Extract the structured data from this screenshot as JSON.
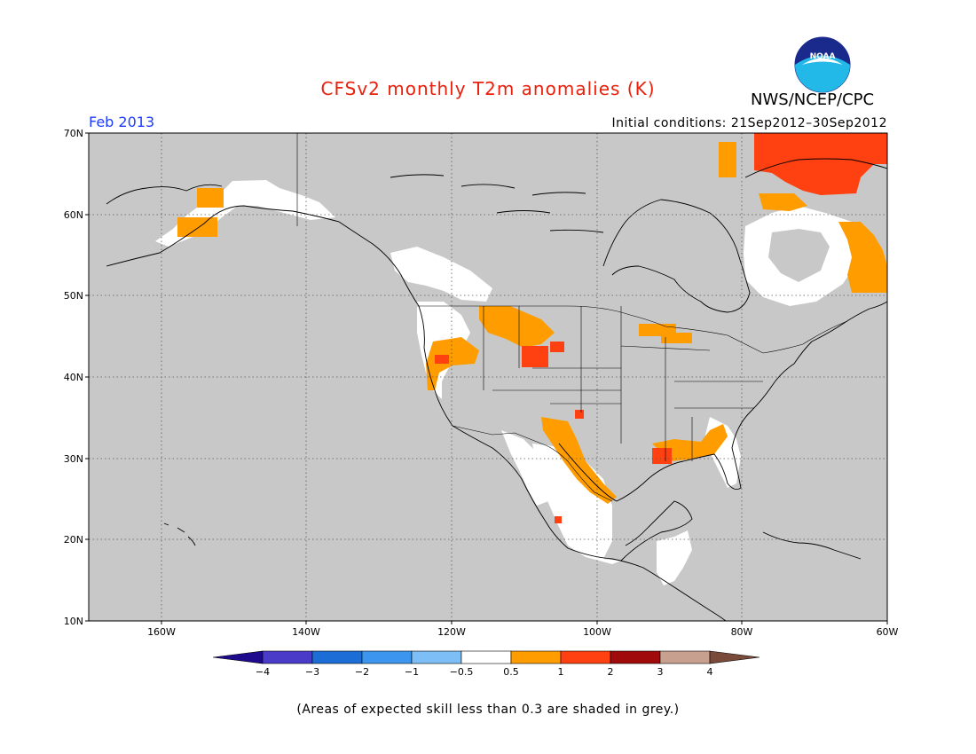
{
  "header": {
    "title": "CFSv2 monthly T2m anomalies (K)",
    "agency": "NWS/NCEP/CPC",
    "logo_text": "NOAA",
    "month": "Feb 2013",
    "initial_conditions": "Initial conditions: 21Sep2012–30Sep2012"
  },
  "axes": {
    "lon_ticks": [
      "160W",
      "140W",
      "120W",
      "100W",
      "80W",
      "60W"
    ],
    "lat_ticks": [
      "10N",
      "20N",
      "30N",
      "40N",
      "50N",
      "60N",
      "70N"
    ]
  },
  "colorbar": {
    "labels": [
      "−4",
      "−3",
      "−2",
      "−1",
      "−0.5",
      "0.5",
      "1",
      "2",
      "3",
      "4"
    ],
    "colors": [
      "#1e0a8c",
      "#4a3cc8",
      "#1c6ed6",
      "#3c96f0",
      "#7cbef5",
      "#ffffff",
      "#ff9d00",
      "#ff4010",
      "#a00a0a",
      "#c8a090",
      "#7a4a3a"
    ]
  },
  "footnote": "(Areas of expected skill less than 0.3 are shaded in grey.)",
  "map_style": {
    "grey_mask": "#c8c8c8",
    "white": "#ffffff",
    "orange": "#ff9d00",
    "red": "#ff4010",
    "coast": "#000000"
  }
}
